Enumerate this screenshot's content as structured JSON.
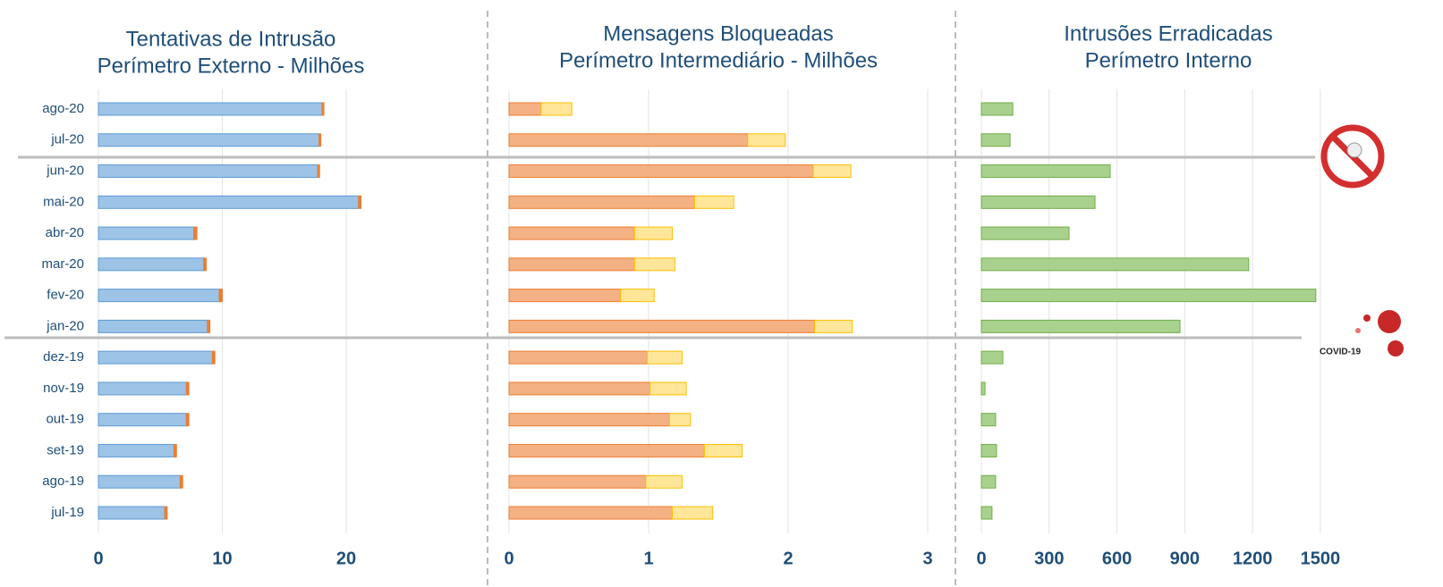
{
  "chart_data": [
    {
      "type": "bar",
      "orientation": "horizontal",
      "stacked": true,
      "title": "Tentativas de Intrusão",
      "subtitle": "Perímetro Externo - Milhões",
      "categories": [
        "ago-20",
        "jul-20",
        "jun-20",
        "mai-20",
        "abr-20",
        "mar-20",
        "fev-20",
        "jan-20",
        "dez-19",
        "nov-19",
        "out-19",
        "set-19",
        "ago-19",
        "jul-19"
      ],
      "series": [
        {
          "color": "#9dc3e6",
          "values": [
            18.05,
            17.8,
            17.7,
            21.0,
            7.7,
            8.5,
            9.75,
            8.8,
            9.2,
            7.1,
            7.1,
            6.1,
            6.6,
            5.35
          ]
        },
        {
          "color": "#ed7d31",
          "values": [
            0.15,
            0.15,
            0.15,
            0.2,
            0.25,
            0.2,
            0.25,
            0.2,
            0.2,
            0.2,
            0.2,
            0.2,
            0.2,
            0.2
          ]
        }
      ],
      "xlim": [
        0,
        30
      ],
      "xticks": [
        0,
        10,
        20
      ],
      "grid": true
    },
    {
      "type": "bar",
      "orientation": "horizontal",
      "stacked": true,
      "title": "Mensagens Bloqueadas",
      "subtitle": "Perímetro Intermediário - Milhões",
      "series": [
        {
          "color": "#f4b183",
          "values": [
            0.23,
            1.71,
            2.18,
            1.33,
            0.9,
            0.9,
            0.8,
            2.19,
            0.99,
            1.01,
            1.15,
            1.4,
            0.98,
            1.17
          ]
        },
        {
          "color": "#ffe699",
          "values": [
            0.22,
            0.27,
            0.27,
            0.28,
            0.27,
            0.29,
            0.24,
            0.27,
            0.25,
            0.26,
            0.15,
            0.27,
            0.26,
            0.29
          ]
        }
      ],
      "xlim": [
        0,
        3.1
      ],
      "xticks": [
        0,
        1,
        2,
        3
      ],
      "grid": true
    },
    {
      "type": "bar",
      "orientation": "horizontal",
      "title": "Intrusões Erradicadas",
      "subtitle": "Perímetro Interno",
      "series": [
        {
          "color": "#a9d18e",
          "values": [
            139,
            127,
            570,
            503,
            388,
            1183,
            1480,
            879,
            95,
            16,
            63,
            67,
            63,
            47
          ]
        }
      ],
      "xlim": [
        0,
        1750
      ],
      "xticks": [
        0,
        300,
        600,
        900,
        1200,
        1500
      ],
      "grid": true,
      "annotation": "COVID-19"
    }
  ]
}
